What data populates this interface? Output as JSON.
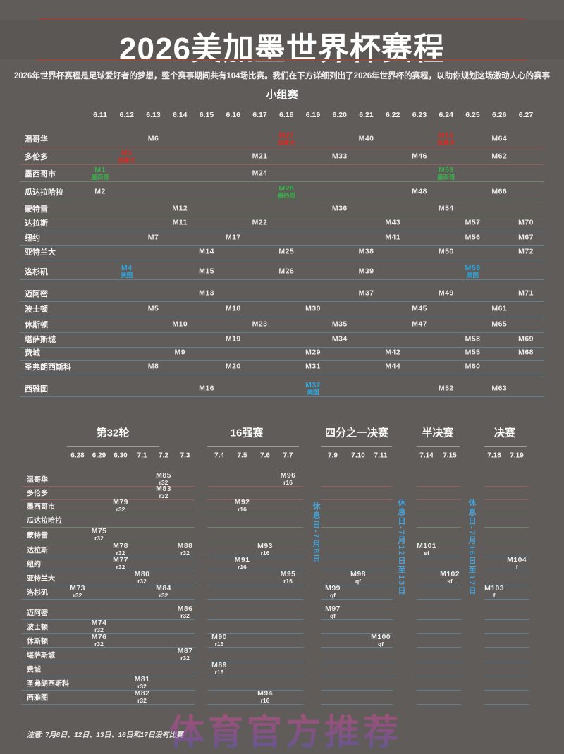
{
  "title": "2026美加墨世界杯赛程",
  "subtitle": "2026年世界杯赛程是足球爱好者的梦想，整个赛事期间共有104场比赛。我们在下方详细列出了2026年世界杯的赛程，以助你规划这场激动人心的赛事",
  "note": "注意: 7月8日、12日、13日、16日和17日没有比赛",
  "watermark": "体育官方推荐",
  "colors": {
    "background": "#5f5c59",
    "canada_red": "#dc2a20",
    "mexico_green": "#38b04b",
    "usa_blue": "#2ca7e0",
    "restday_blue": "#4aa3d9",
    "title_rule_red": "#8d4a3d",
    "watermark_pink": "#e5548c",
    "watermark_purple": "#5a55c8"
  },
  "chart_data": {
    "type": "table",
    "title": "2026美加墨世界杯赛程",
    "group_stage": {
      "heading": "小组赛",
      "dates": [
        "6.11",
        "6.12",
        "6.13",
        "6.14",
        "6.15",
        "6.16",
        "6.17",
        "6.18",
        "6.19",
        "6.20",
        "6.21",
        "6.22",
        "6.23",
        "6.24",
        "6.25",
        "6.26",
        "6.27"
      ],
      "rows": [
        {
          "city": "温哥华",
          "country": "CA",
          "matches": [
            [
              "M6",
              "6.13",
              ""
            ],
            [
              "M27",
              "6.18",
              "加拿大"
            ],
            [
              "M40",
              "6.21",
              ""
            ],
            [
              "M51",
              "6.24",
              "加拿大"
            ],
            [
              "M64",
              "6.26",
              ""
            ]
          ]
        },
        {
          "city": "多伦多",
          "country": "CA",
          "matches": [
            [
              "M3",
              "6.12",
              "加拿大"
            ],
            [
              "M21",
              "6.17",
              ""
            ],
            [
              "M33",
              "6.20",
              ""
            ],
            [
              "M46",
              "6.23",
              ""
            ],
            [
              "M62",
              "6.26",
              ""
            ]
          ]
        },
        {
          "city": "墨西哥市",
          "country": "MX",
          "matches": [
            [
              "M1",
              "6.11",
              "墨西哥"
            ],
            [
              "M24",
              "6.17",
              ""
            ],
            [
              "M53",
              "6.24",
              "墨西哥"
            ]
          ]
        },
        {
          "city": "瓜达拉哈拉",
          "country": "MX",
          "matches": [
            [
              "M2",
              "6.11",
              ""
            ],
            [
              "M28",
              "6.18",
              "墨西哥"
            ],
            [
              "M48",
              "6.23",
              ""
            ],
            [
              "M66",
              "6.26",
              ""
            ]
          ]
        },
        {
          "city": "蒙特雷",
          "country": "MX",
          "matches": [
            [
              "M12",
              "6.14",
              ""
            ],
            [
              "M36",
              "6.20",
              ""
            ],
            [
              "M54",
              "6.24",
              ""
            ]
          ]
        },
        {
          "city": "达拉斯",
          "country": "US",
          "matches": [
            [
              "M11",
              "6.14",
              ""
            ],
            [
              "M22",
              "6.17",
              ""
            ],
            [
              "M43",
              "6.22",
              ""
            ],
            [
              "M57",
              "6.25",
              ""
            ],
            [
              "M70",
              "6.27",
              ""
            ]
          ]
        },
        {
          "city": "纽约",
          "country": "US",
          "matches": [
            [
              "M7",
              "6.13",
              ""
            ],
            [
              "M17",
              "6.16",
              ""
            ],
            [
              "M41",
              "6.22",
              ""
            ],
            [
              "M56",
              "6.25",
              ""
            ],
            [
              "M67",
              "6.27",
              ""
            ]
          ]
        },
        {
          "city": "亚特兰大",
          "country": "US",
          "matches": [
            [
              "M14",
              "6.15",
              ""
            ],
            [
              "M25",
              "6.18",
              ""
            ],
            [
              "M38",
              "6.21",
              ""
            ],
            [
              "M50",
              "6.24",
              ""
            ],
            [
              "M72",
              "6.27",
              ""
            ]
          ]
        },
        {
          "city": "洛杉矶",
          "country": "US",
          "matches": [
            [
              "M4",
              "6.12",
              "美国"
            ],
            [
              "M15",
              "6.15",
              ""
            ],
            [
              "M26",
              "6.18",
              ""
            ],
            [
              "M39",
              "6.21",
              ""
            ],
            [
              "M59",
              "6.25",
              "美国"
            ]
          ]
        },
        {
          "city": "迈阿密",
          "country": "US",
          "matches": [
            [
              "M13",
              "6.15",
              ""
            ],
            [
              "M37",
              "6.21",
              ""
            ],
            [
              "M49",
              "6.24",
              ""
            ],
            [
              "M71",
              "6.27",
              ""
            ]
          ]
        },
        {
          "city": "波士顿",
          "country": "US",
          "matches": [
            [
              "M5",
              "6.13",
              ""
            ],
            [
              "M18",
              "6.16",
              ""
            ],
            [
              "M30",
              "6.19",
              ""
            ],
            [
              "M45",
              "6.23",
              ""
            ],
            [
              "M61",
              "6.26",
              ""
            ]
          ]
        },
        {
          "city": "休斯顿",
          "country": "US",
          "matches": [
            [
              "M10",
              "6.14",
              ""
            ],
            [
              "M23",
              "6.17",
              ""
            ],
            [
              "M35",
              "6.20",
              ""
            ],
            [
              "M47",
              "6.23",
              ""
            ],
            [
              "M65",
              "6.26",
              ""
            ]
          ]
        },
        {
          "city": "堪萨斯城",
          "country": "US",
          "matches": [
            [
              "M19",
              "6.16",
              ""
            ],
            [
              "M34",
              "6.20",
              ""
            ],
            [
              "M58",
              "6.25",
              ""
            ],
            [
              "M69",
              "6.27",
              ""
            ]
          ]
        },
        {
          "city": "费城",
          "country": "US",
          "matches": [
            [
              "M9",
              "6.14",
              ""
            ],
            [
              "M29",
              "6.19",
              ""
            ],
            [
              "M42",
              "6.22",
              ""
            ],
            [
              "M55",
              "6.25",
              ""
            ],
            [
              "M68",
              "6.27",
              ""
            ]
          ]
        },
        {
          "city": "圣弗朗西斯科",
          "country": "US",
          "matches": [
            [
              "M8",
              "6.13",
              ""
            ],
            [
              "M20",
              "6.16",
              ""
            ],
            [
              "M31",
              "6.19",
              ""
            ],
            [
              "M44",
              "6.22",
              ""
            ],
            [
              "M60",
              "6.25",
              ""
            ]
          ]
        },
        {
          "city": "西雅图",
          "country": "US",
          "matches": [
            [
              "M16",
              "6.15",
              ""
            ],
            [
              "M32",
              "6.19",
              "美国"
            ],
            [
              "M52",
              "6.24",
              ""
            ],
            [
              "M63",
              "6.26",
              ""
            ]
          ]
        }
      ]
    },
    "knockout": {
      "sections": [
        {
          "id": "r32",
          "title": "第32轮",
          "dates": [
            "6.28",
            "6.29",
            "6.30",
            "7.1",
            "7.2",
            "7.3"
          ]
        },
        {
          "id": "r16",
          "title": "16强赛",
          "dates": [
            "7.4",
            "7.5",
            "7.6",
            "7.7"
          ]
        },
        {
          "id": "qf",
          "title": "四分之一决赛",
          "dates": [
            "7.9",
            "7.10",
            "7.11"
          ]
        },
        {
          "id": "sf",
          "title": "半决赛",
          "dates": [
            "7.14",
            "7.15"
          ]
        },
        {
          "id": "f",
          "title": "决赛",
          "dates": [
            "7.18",
            "7.19"
          ]
        }
      ],
      "rows": [
        {
          "city": "温哥华",
          "country": "CA",
          "matches": [
            [
              "M85",
              "7.2",
              "r32"
            ],
            [
              "M96",
              "7.7",
              "r16"
            ]
          ]
        },
        {
          "city": "多伦多",
          "country": "CA",
          "matches": [
            [
              "M83",
              "7.2",
              "r32"
            ]
          ]
        },
        {
          "city": "墨西哥市",
          "country": "MX",
          "matches": [
            [
              "M79",
              "6.30",
              "r32"
            ],
            [
              "M92",
              "7.5",
              "r16"
            ]
          ]
        },
        {
          "city": "瓜达拉哈拉",
          "country": "MX",
          "matches": []
        },
        {
          "city": "蒙特雷",
          "country": "MX",
          "matches": [
            [
              "M75",
              "6.29",
              "r32"
            ]
          ]
        },
        {
          "city": "达拉斯",
          "country": "US",
          "matches": [
            [
              "M78",
              "6.30",
              "r32"
            ],
            [
              "M88",
              "7.3",
              "r32"
            ],
            [
              "M93",
              "7.6",
              "r16"
            ],
            [
              "M101",
              "7.14",
              "sf"
            ]
          ]
        },
        {
          "city": "纽约",
          "country": "US",
          "matches": [
            [
              "M77",
              "6.30",
              "r32"
            ],
            [
              "M91",
              "7.5",
              "r16"
            ],
            [
              "M104",
              "7.19",
              "f"
            ]
          ]
        },
        {
          "city": "亚特兰大",
          "country": "US",
          "matches": [
            [
              "M80",
              "7.1",
              "r32"
            ],
            [
              "M95",
              "7.7",
              "r16"
            ],
            [
              "M98",
              "7.10",
              "qf"
            ],
            [
              "M102",
              "7.15",
              "sf"
            ]
          ]
        },
        {
          "city": "洛杉矶",
          "country": "US",
          "matches": [
            [
              "M73",
              "6.28",
              "r32"
            ],
            [
              "M84",
              "7.2",
              "r32"
            ],
            [
              "M99",
              "7.9",
              "qf"
            ],
            [
              "M103",
              "7.18",
              "f"
            ]
          ]
        },
        {
          "city": "迈阿密",
          "country": "US",
          "matches": [
            [
              "M86",
              "7.3",
              "r32"
            ],
            [
              "M97",
              "7.9",
              "qf"
            ]
          ]
        },
        {
          "city": "波士顿",
          "country": "US",
          "matches": [
            [
              "M74",
              "6.29",
              "r32"
            ]
          ]
        },
        {
          "city": "休斯顿",
          "country": "US",
          "matches": [
            [
              "M76",
              "6.29",
              "r32"
            ],
            [
              "M90",
              "7.4",
              "r16"
            ],
            [
              "M100",
              "7.11",
              "qf"
            ]
          ]
        },
        {
          "city": "堪萨斯城",
          "country": "US",
          "matches": [
            [
              "M87",
              "7.3",
              "r32"
            ]
          ]
        },
        {
          "city": "费城",
          "country": "US",
          "matches": [
            [
              "M89",
              "7.4",
              "r16"
            ]
          ]
        },
        {
          "city": "圣弗朗西斯科",
          "country": "US",
          "matches": [
            [
              "M81",
              "7.1",
              "r32"
            ]
          ]
        },
        {
          "city": "西雅图",
          "country": "US",
          "matches": [
            [
              "M82",
              "7.1",
              "r32"
            ],
            [
              "M94",
              "7.6",
              "r16"
            ]
          ]
        }
      ]
    },
    "rest_days": [
      {
        "text": "休息日-7月8日"
      },
      {
        "text": "休息日-7月12日至13日"
      },
      {
        "text": "休息日-7月16日至17日"
      }
    ]
  }
}
